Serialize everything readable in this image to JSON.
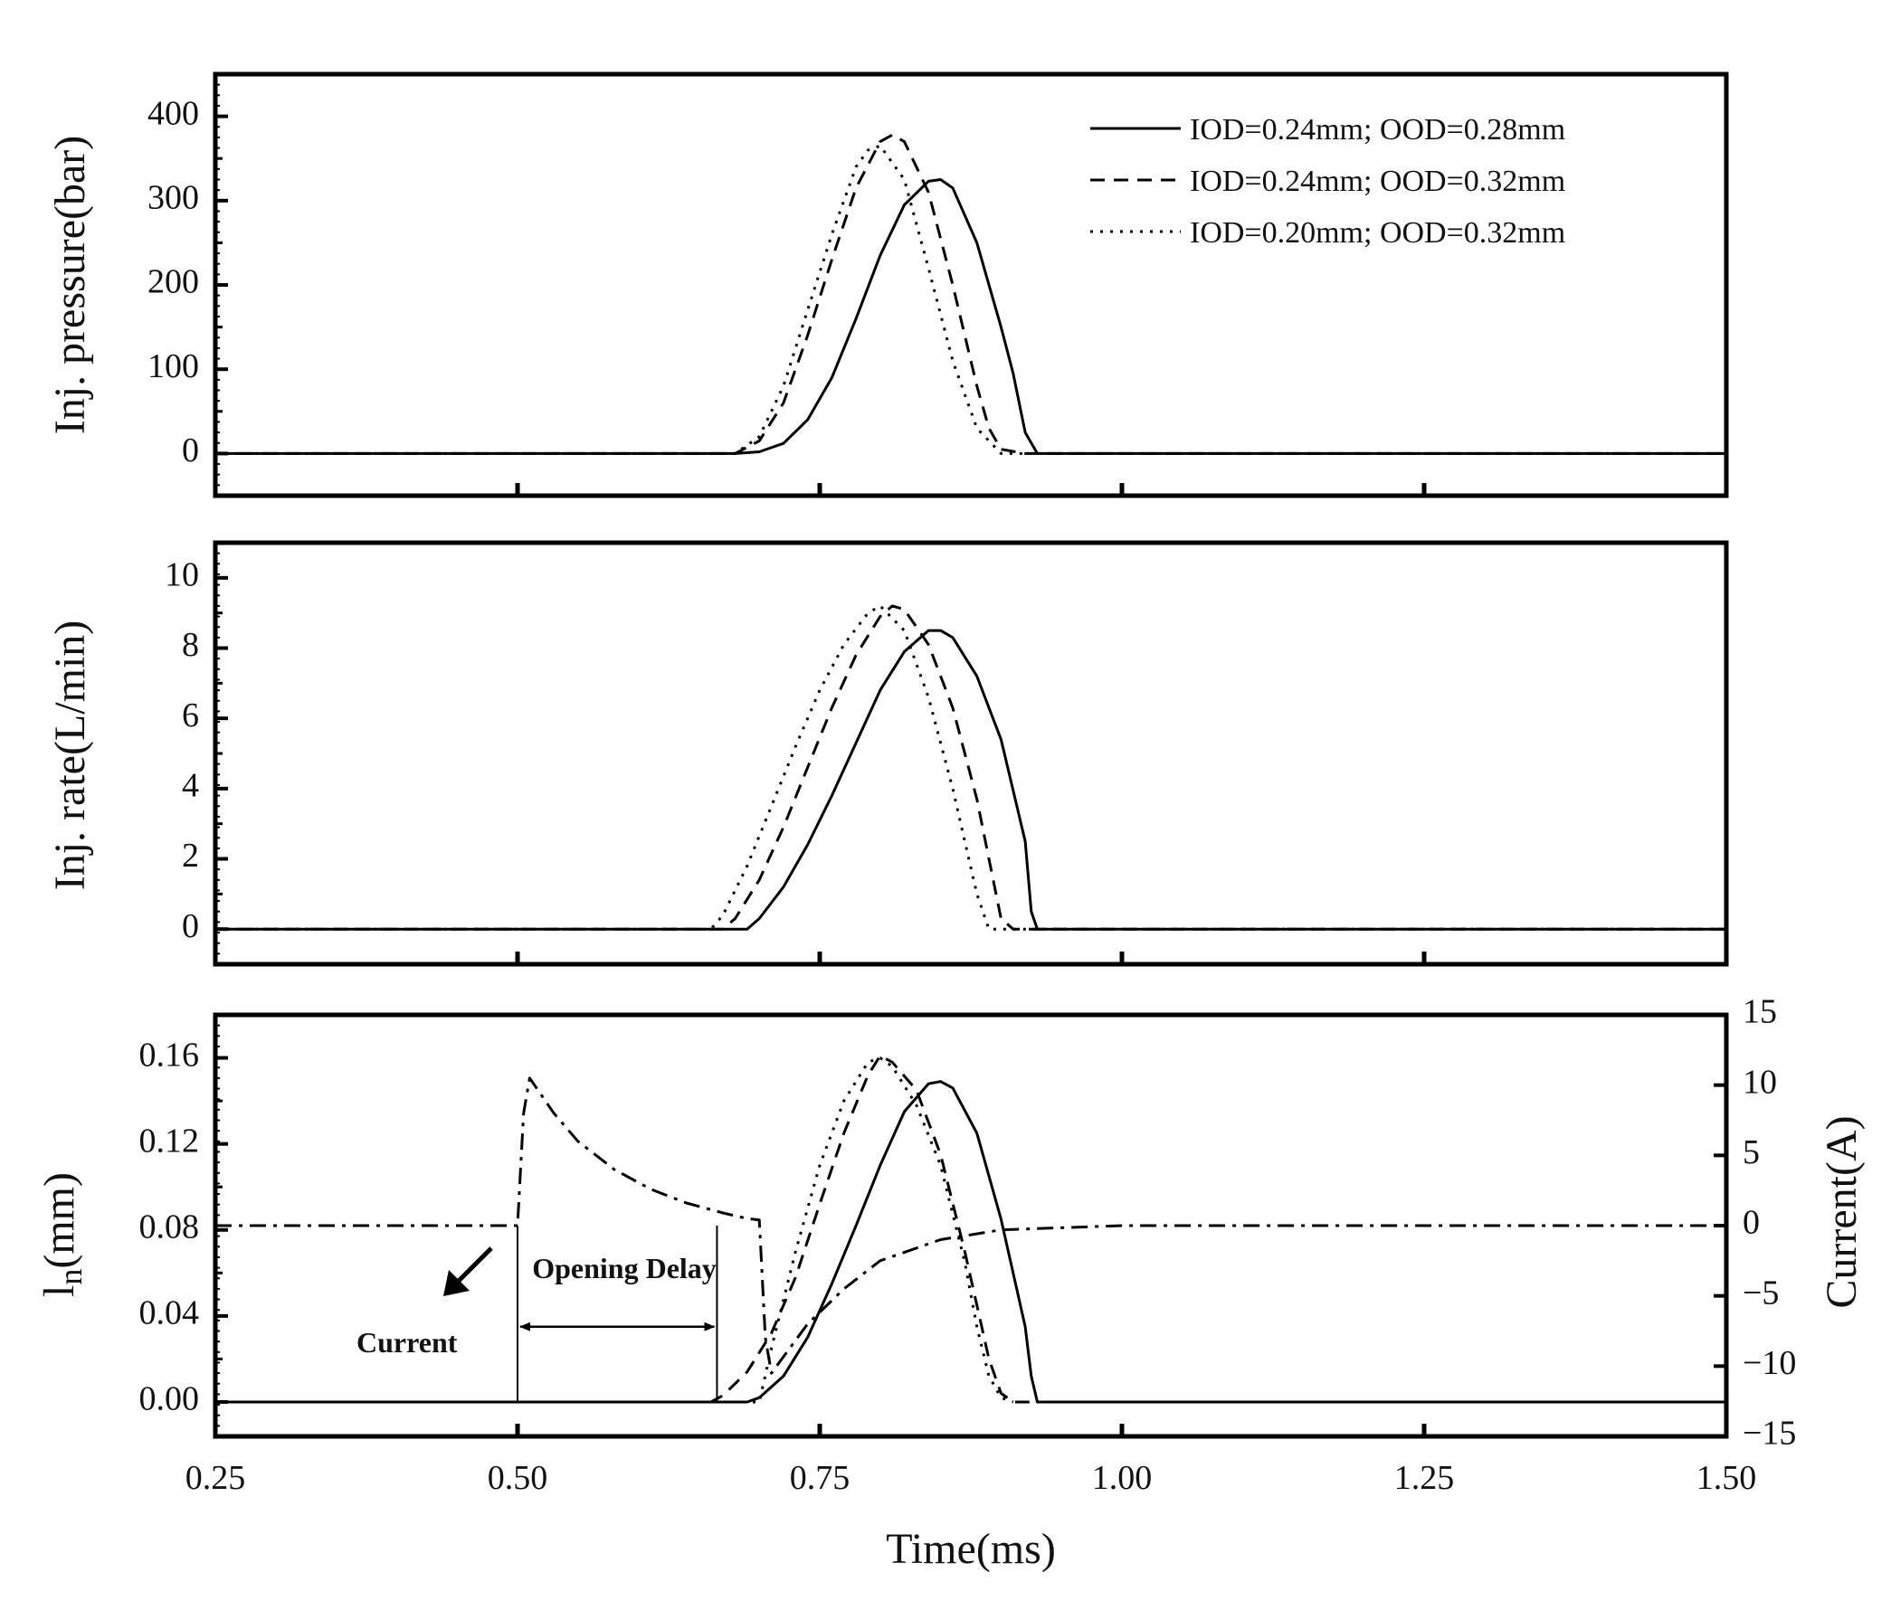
{
  "chart_data": [
    {
      "type": "line",
      "title": "",
      "xlabel": "",
      "ylabel": "Inj. pressure(bar)",
      "xlim": [
        0.25,
        1.5
      ],
      "ylim": [
        -50,
        450
      ],
      "yticks": [
        0,
        100,
        200,
        300,
        400
      ],
      "yticklabels": [
        "0",
        "100",
        "200",
        "300",
        "400"
      ],
      "xticks": [
        0.5,
        0.75,
        1.0,
        1.25
      ],
      "legend": {
        "position": "top-right",
        "entries": [
          "IOD=0.24mm; OOD=0.28mm",
          "IOD=0.24mm; OOD=0.32mm",
          "IOD=0.20mm; OOD=0.32mm"
        ]
      },
      "series": [
        {
          "name": "IOD=0.24mm; OOD=0.28mm",
          "style": "solid",
          "x": [
            0.25,
            0.68,
            0.7,
            0.72,
            0.74,
            0.76,
            0.78,
            0.8,
            0.82,
            0.84,
            0.85,
            0.86,
            0.88,
            0.9,
            0.91,
            0.92,
            0.93,
            1.5
          ],
          "y": [
            0,
            0,
            2,
            12,
            40,
            90,
            160,
            235,
            295,
            323,
            325,
            315,
            250,
            150,
            95,
            25,
            0,
            0
          ]
        },
        {
          "name": "IOD=0.24mm; OOD=0.32mm",
          "style": "dashed",
          "x": [
            0.25,
            0.68,
            0.7,
            0.72,
            0.74,
            0.76,
            0.78,
            0.8,
            0.81,
            0.82,
            0.84,
            0.86,
            0.88,
            0.89,
            0.9,
            0.92,
            1.5
          ],
          "y": [
            0,
            0,
            15,
            60,
            140,
            230,
            315,
            370,
            378,
            370,
            310,
            200,
            80,
            30,
            5,
            0,
            0
          ]
        },
        {
          "name": "IOD=0.20mm; OOD=0.32mm",
          "style": "dotted",
          "x": [
            0.25,
            0.68,
            0.7,
            0.72,
            0.74,
            0.76,
            0.78,
            0.79,
            0.8,
            0.82,
            0.84,
            0.86,
            0.88,
            0.9,
            0.91,
            1.5
          ],
          "y": [
            0,
            0,
            20,
            80,
            170,
            260,
            340,
            360,
            365,
            325,
            220,
            110,
            30,
            0,
            0,
            0
          ]
        }
      ]
    },
    {
      "type": "line",
      "title": "",
      "xlabel": "",
      "ylabel": "Inj. rate(L/min)",
      "xlim": [
        0.25,
        1.5
      ],
      "ylim": [
        -1,
        11
      ],
      "yticks": [
        0,
        2,
        4,
        6,
        8,
        10
      ],
      "yticklabels": [
        "0",
        "2",
        "4",
        "6",
        "8",
        "10"
      ],
      "xticks": [
        0.5,
        0.75,
        1.0,
        1.25
      ],
      "series": [
        {
          "name": "IOD=0.24mm; OOD=0.28mm",
          "style": "solid",
          "x": [
            0.25,
            0.69,
            0.7,
            0.72,
            0.74,
            0.76,
            0.78,
            0.8,
            0.82,
            0.84,
            0.85,
            0.86,
            0.88,
            0.9,
            0.92,
            0.925,
            0.93,
            1.5
          ],
          "y": [
            0,
            0,
            0.3,
            1.2,
            2.4,
            3.8,
            5.3,
            6.8,
            7.9,
            8.5,
            8.5,
            8.3,
            7.2,
            5.4,
            2.5,
            0.5,
            0,
            0
          ]
        },
        {
          "name": "IOD=0.24mm; OOD=0.32mm",
          "style": "dashed",
          "x": [
            0.25,
            0.67,
            0.68,
            0.7,
            0.72,
            0.74,
            0.76,
            0.78,
            0.8,
            0.81,
            0.82,
            0.84,
            0.86,
            0.88,
            0.89,
            0.9,
            0.91,
            0.93,
            1.5
          ],
          "y": [
            0,
            0,
            0.3,
            1.4,
            2.9,
            4.6,
            6.3,
            7.8,
            8.9,
            9.2,
            9.1,
            8.1,
            6.3,
            3.7,
            2.0,
            0.3,
            0,
            0,
            0
          ]
        },
        {
          "name": "IOD=0.20mm; OOD=0.32mm",
          "style": "dotted",
          "x": [
            0.25,
            0.66,
            0.67,
            0.69,
            0.71,
            0.73,
            0.75,
            0.77,
            0.79,
            0.8,
            0.82,
            0.84,
            0.86,
            0.87,
            0.88,
            0.89,
            1.5
          ],
          "y": [
            0,
            0,
            0.4,
            1.8,
            3.5,
            5.2,
            6.8,
            8.1,
            9.0,
            9.2,
            8.5,
            6.6,
            4.0,
            2.5,
            1.0,
            0,
            0
          ]
        }
      ]
    },
    {
      "type": "line",
      "title": "",
      "xlabel": "Time(ms)",
      "ylabel": "l",
      "ylabel_subscript": "n",
      "ylabel_suffix": "(mm)",
      "ylabel_right": "Current(A)",
      "xlim": [
        0.25,
        1.5
      ],
      "ylim": [
        -0.016,
        0.18
      ],
      "y2lim": [
        -15,
        15
      ],
      "yticks": [
        0.0,
        0.04,
        0.08,
        0.12,
        0.16
      ],
      "yticklabels": [
        "0.00",
        "0.04",
        "0.08",
        "0.12",
        "0.16"
      ],
      "y2ticks": [
        -15,
        -10,
        -5,
        0,
        5,
        10,
        15
      ],
      "y2ticklabels": [
        "−15",
        "−10",
        "−5",
        "0",
        "5",
        "10",
        "15"
      ],
      "xticks": [
        0.25,
        0.5,
        0.75,
        1.0,
        1.25,
        1.5
      ],
      "xticklabels": [
        "0.25",
        "0.50",
        "0.75",
        "1.00",
        "1.25",
        "1.50"
      ],
      "annotations": {
        "current": "Current",
        "opening_delay": "Opening Delay"
      },
      "series": [
        {
          "name": "IOD=0.24mm; OOD=0.28mm",
          "style": "solid",
          "axis": "left",
          "x": [
            0.25,
            0.69,
            0.7,
            0.72,
            0.74,
            0.76,
            0.78,
            0.8,
            0.82,
            0.84,
            0.85,
            0.86,
            0.88,
            0.9,
            0.92,
            0.925,
            0.93,
            1.5
          ],
          "y": [
            0,
            0,
            0.002,
            0.012,
            0.03,
            0.055,
            0.082,
            0.11,
            0.135,
            0.148,
            0.149,
            0.146,
            0.125,
            0.085,
            0.035,
            0.012,
            0,
            0
          ]
        },
        {
          "name": "IOD=0.24mm; OOD=0.32mm",
          "style": "dashed",
          "axis": "left",
          "x": [
            0.25,
            0.66,
            0.67,
            0.69,
            0.71,
            0.73,
            0.75,
            0.77,
            0.79,
            0.8,
            0.81,
            0.83,
            0.85,
            0.87,
            0.88,
            0.89,
            0.9,
            0.91,
            1.5
          ],
          "y": [
            0,
            0,
            0.003,
            0.014,
            0.032,
            0.058,
            0.092,
            0.125,
            0.152,
            0.161,
            0.158,
            0.145,
            0.115,
            0.07,
            0.045,
            0.02,
            0.004,
            0,
            0
          ]
        },
        {
          "name": "IOD=0.20mm; OOD=0.32mm",
          "style": "dotted",
          "axis": "left",
          "x": [
            0.25,
            0.7,
            0.71,
            0.73,
            0.75,
            0.77,
            0.79,
            0.8,
            0.81,
            0.83,
            0.85,
            0.87,
            0.88,
            0.89,
            0.9,
            0.91
          ],
          "y": [
            0,
            0,
            0.025,
            0.07,
            0.11,
            0.14,
            0.158,
            0.16,
            0.156,
            0.138,
            0.11,
            0.065,
            0.035,
            0.012,
            0.002,
            0
          ]
        },
        {
          "name": "Current",
          "style": "dashdot",
          "axis": "right",
          "x": [
            0.25,
            0.5,
            0.505,
            0.51,
            0.53,
            0.55,
            0.58,
            0.61,
            0.64,
            0.67,
            0.69,
            0.7,
            0.705,
            0.71,
            0.74,
            0.77,
            0.8,
            0.85,
            0.9,
            1.0,
            1.5
          ],
          "y": [
            0,
            0,
            8,
            10.5,
            8.0,
            6.0,
            4.0,
            2.6,
            1.6,
            0.9,
            0.5,
            0.4,
            -8,
            -10.5,
            -7,
            -4.5,
            -2.5,
            -1,
            -0.3,
            0,
            0
          ]
        }
      ]
    }
  ]
}
